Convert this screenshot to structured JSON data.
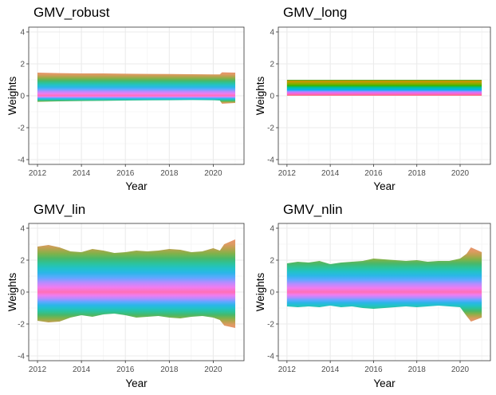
{
  "chart_data": [
    {
      "type": "area",
      "title": "GMV_robust",
      "xlabel": "Year",
      "ylabel": "Weights",
      "xlim": [
        2011.6,
        2021.4
      ],
      "ylim": [
        -4.3,
        4.3
      ],
      "x_ticks": [
        2012,
        2014,
        2016,
        2018,
        2020
      ],
      "y_ticks": [
        -4,
        -2,
        0,
        2,
        4
      ],
      "grid": true,
      "positive_envelope": [
        [
          2012,
          1.45
        ],
        [
          2013,
          1.42
        ],
        [
          2014,
          1.4
        ],
        [
          2015,
          1.4
        ],
        [
          2016,
          1.38
        ],
        [
          2017,
          1.37
        ],
        [
          2018,
          1.36
        ],
        [
          2019,
          1.35
        ],
        [
          2020,
          1.34
        ],
        [
          2020.3,
          1.34
        ],
        [
          2020.4,
          1.47
        ],
        [
          2021,
          1.45
        ]
      ],
      "negative_envelope": [
        [
          2012,
          -0.38
        ],
        [
          2013,
          -0.35
        ],
        [
          2014,
          -0.33
        ],
        [
          2015,
          -0.32
        ],
        [
          2016,
          -0.3
        ],
        [
          2017,
          -0.29
        ],
        [
          2018,
          -0.28
        ],
        [
          2019,
          -0.27
        ],
        [
          2020,
          -0.28
        ],
        [
          2020.3,
          -0.3
        ],
        [
          2020.4,
          -0.5
        ],
        [
          2021,
          -0.45
        ]
      ]
    },
    {
      "type": "area",
      "title": "GMV_long",
      "xlabel": "Year",
      "ylabel": "Weights",
      "xlim": [
        2011.6,
        2021.4
      ],
      "ylim": [
        -4.3,
        4.3
      ],
      "x_ticks": [
        2012,
        2014,
        2016,
        2018,
        2020
      ],
      "y_ticks": [
        -4,
        -2,
        0,
        2,
        4
      ],
      "grid": true,
      "positive_envelope": [
        [
          2012,
          1.0
        ],
        [
          2021,
          1.0
        ]
      ],
      "negative_envelope": [
        [
          2012,
          0.0
        ],
        [
          2021,
          0.0
        ]
      ]
    },
    {
      "type": "area",
      "title": "GMV_lin",
      "xlabel": "Year",
      "ylabel": "Weights",
      "xlim": [
        2011.6,
        2021.4
      ],
      "ylim": [
        -4.3,
        4.3
      ],
      "x_ticks": [
        2012,
        2014,
        2016,
        2018,
        2020
      ],
      "y_ticks": [
        -4,
        -2,
        0,
        2,
        4
      ],
      "grid": true,
      "positive_envelope": [
        [
          2012,
          2.85
        ],
        [
          2012.5,
          2.95
        ],
        [
          2013,
          2.8
        ],
        [
          2013.5,
          2.55
        ],
        [
          2014,
          2.5
        ],
        [
          2014.5,
          2.7
        ],
        [
          2015,
          2.6
        ],
        [
          2015.5,
          2.45
        ],
        [
          2016,
          2.5
        ],
        [
          2016.5,
          2.6
        ],
        [
          2017,
          2.55
        ],
        [
          2017.5,
          2.6
        ],
        [
          2018,
          2.7
        ],
        [
          2018.5,
          2.65
        ],
        [
          2019,
          2.5
        ],
        [
          2019.5,
          2.55
        ],
        [
          2020,
          2.75
        ],
        [
          2020.3,
          2.6
        ],
        [
          2020.5,
          3.0
        ],
        [
          2021,
          3.3
        ]
      ],
      "negative_envelope": [
        [
          2012,
          -1.8
        ],
        [
          2012.5,
          -1.9
        ],
        [
          2013,
          -1.85
        ],
        [
          2013.5,
          -1.6
        ],
        [
          2014,
          -1.45
        ],
        [
          2014.5,
          -1.55
        ],
        [
          2015,
          -1.4
        ],
        [
          2015.5,
          -1.35
        ],
        [
          2016,
          -1.45
        ],
        [
          2016.5,
          -1.6
        ],
        [
          2017,
          -1.55
        ],
        [
          2017.5,
          -1.5
        ],
        [
          2018,
          -1.6
        ],
        [
          2018.5,
          -1.65
        ],
        [
          2019,
          -1.55
        ],
        [
          2019.5,
          -1.5
        ],
        [
          2020,
          -1.6
        ],
        [
          2020.3,
          -1.75
        ],
        [
          2020.5,
          -2.1
        ],
        [
          2021,
          -2.25
        ]
      ]
    },
    {
      "type": "area",
      "title": "GMV_nlin",
      "xlabel": "Year",
      "ylabel": "Weights",
      "xlim": [
        2011.6,
        2021.4
      ],
      "ylim": [
        -4.3,
        4.3
      ],
      "x_ticks": [
        2012,
        2014,
        2016,
        2018,
        2020
      ],
      "y_ticks": [
        -4,
        -2,
        0,
        2,
        4
      ],
      "grid": true,
      "positive_envelope": [
        [
          2012,
          1.8
        ],
        [
          2012.5,
          1.9
        ],
        [
          2013,
          1.85
        ],
        [
          2013.5,
          1.95
        ],
        [
          2014,
          1.75
        ],
        [
          2014.5,
          1.85
        ],
        [
          2015,
          1.9
        ],
        [
          2015.5,
          1.95
        ],
        [
          2016,
          2.1
        ],
        [
          2016.5,
          2.05
        ],
        [
          2017,
          2.0
        ],
        [
          2017.5,
          1.95
        ],
        [
          2018,
          2.0
        ],
        [
          2018.5,
          1.9
        ],
        [
          2019,
          1.95
        ],
        [
          2019.5,
          1.95
        ],
        [
          2020,
          2.1
        ],
        [
          2020.3,
          2.4
        ],
        [
          2020.5,
          2.8
        ],
        [
          2021,
          2.5
        ]
      ],
      "negative_envelope": [
        [
          2012,
          -0.9
        ],
        [
          2012.5,
          -0.95
        ],
        [
          2013,
          -0.9
        ],
        [
          2013.5,
          -0.95
        ],
        [
          2014,
          -0.85
        ],
        [
          2014.5,
          -0.95
        ],
        [
          2015,
          -0.9
        ],
        [
          2015.5,
          -1.0
        ],
        [
          2016,
          -1.05
        ],
        [
          2016.5,
          -1.0
        ],
        [
          2017,
          -0.95
        ],
        [
          2017.5,
          -0.9
        ],
        [
          2018,
          -0.95
        ],
        [
          2018.5,
          -0.9
        ],
        [
          2019,
          -0.85
        ],
        [
          2019.5,
          -0.9
        ],
        [
          2020,
          -0.95
        ],
        [
          2020.3,
          -1.5
        ],
        [
          2020.5,
          -1.85
        ],
        [
          2021,
          -1.6
        ]
      ]
    }
  ]
}
